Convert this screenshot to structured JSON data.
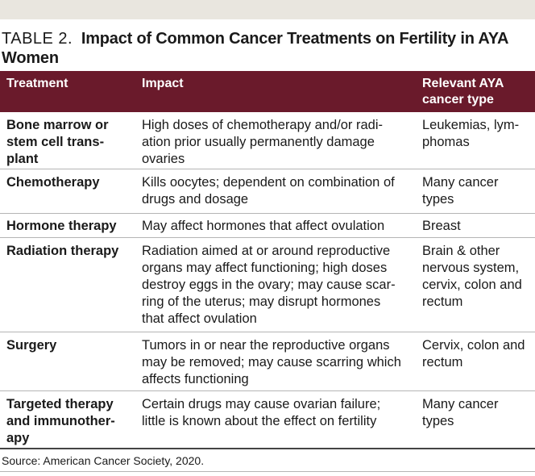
{
  "title": {
    "label": "TABLE 2.",
    "text": "Impact of Common Cancer Treatments on Fertility in AYA Women"
  },
  "columns": [
    "Treatment",
    "Impact",
    "Relevant AYA cancer type"
  ],
  "rows": [
    {
      "treatment": "Bone marrow or stem cell trans­plant",
      "impact": "High doses of chemotherapy and/or radi­ation prior usually permanently damage ovaries",
      "type": "Leukemias, lym­phomas"
    },
    {
      "treatment": "Chemotherapy",
      "impact": "Kills oocytes; dependent on combination of drugs and dosage",
      "type": "Many cancer types"
    },
    {
      "treatment": "Hormone therapy",
      "impact": "May affect hormones that affect ovulation",
      "type": "Breast"
    },
    {
      "treatment": "Radiation therapy",
      "impact": "Radiation aimed at or around reproductive organs may affect functioning; high doses destroy eggs in the ovary; may cause scar­ring of the uterus; may disrupt hormones that affect ovulation",
      "type": "Brain & other nervous system, cervix, colon and rectum"
    },
    {
      "treatment": "Surgery",
      "impact": "Tumors in or near the reproductive organs may be removed; may cause scarring which affects functioning",
      "type": "Cervix, colon and rectum"
    },
    {
      "treatment": "Targeted therapy and immunother­apy",
      "impact": "Certain drugs may cause ovarian failure; little is known about the effect on fertility",
      "type": "Many cancer types"
    }
  ],
  "source": "Source: American Cancer Society, 2020.",
  "colors": {
    "header_bg": "#6a1a2b",
    "band_bg": "#e9e6df"
  }
}
